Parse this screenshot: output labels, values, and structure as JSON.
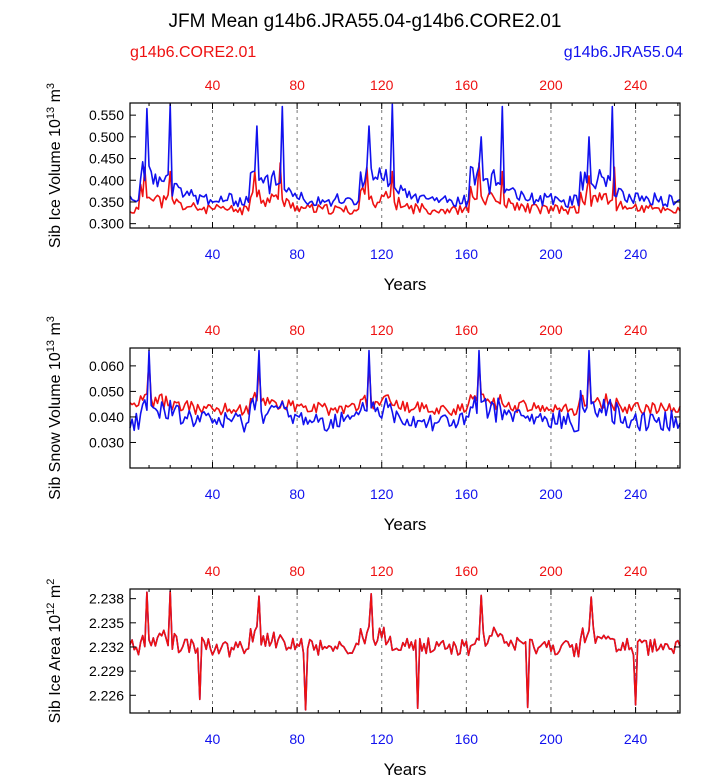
{
  "title": "JFM Mean g14b6.JRA55.04-g14b6.CORE2.01",
  "legend": {
    "left": {
      "label": "g14b6.CORE2.01",
      "color": "#ee1111"
    },
    "right": {
      "label": "g14b6.JRA55.04",
      "color": "#1111ee"
    }
  },
  "colors": {
    "core": "#ee1111",
    "jra": "#1111ee",
    "axis": "#000000"
  },
  "chart_data": [
    {
      "type": "line",
      "ylabel_main": "Sib Ice Volume 10",
      "ylabel_exp": "13",
      "ylabel_unit": " m",
      "ylabel_unit_exp": "3",
      "xlabel": "Years",
      "xlim": [
        1,
        261
      ],
      "ylim": [
        0.29,
        0.578
      ],
      "yticks": [
        0.3,
        0.35,
        0.4,
        0.45,
        0.5,
        0.55
      ],
      "ytick_labels": [
        "0.300",
        "0.350",
        "0.400",
        "0.450",
        "0.500",
        "0.550"
      ],
      "xticks": [
        40,
        80,
        120,
        160,
        200,
        240
      ],
      "xtick_labels": [
        "40",
        "80",
        "120",
        "160",
        "200",
        "240"
      ],
      "cycle": 52,
      "series": [
        {
          "name": "g14b6.CORE2.01",
          "params": {
            "base": 0.33,
            "amp": 0.055,
            "noise": 0.022,
            "min": 0.295,
            "seed": 11,
            "spikes": [
              [
                8,
                0.43
              ],
              [
                20,
                0.42
              ],
              [
                60,
                0.42
              ],
              [
                72,
                0.44
              ],
              [
                113,
                0.43
              ],
              [
                125,
                0.42
              ],
              [
                166,
                0.44
              ],
              [
                177,
                0.42
              ],
              [
                218,
                0.41
              ],
              [
                230,
                0.43
              ]
            ]
          }
        },
        {
          "name": "g14b6.JRA55.04",
          "params": {
            "base": 0.35,
            "amp": 0.1,
            "noise": 0.03,
            "min": 0.3,
            "seed": 23,
            "spikes": [
              [
                9,
                0.565
              ],
              [
                20,
                0.575
              ],
              [
                61,
                0.525
              ],
              [
                73,
                0.57
              ],
              [
                114,
                0.525
              ],
              [
                125,
                0.575
              ],
              [
                167,
                0.5
              ],
              [
                177,
                0.57
              ],
              [
                218,
                0.5
              ],
              [
                229,
                0.57
              ]
            ]
          }
        }
      ]
    },
    {
      "type": "line",
      "ylabel_main": "Sib Snow Volume 10",
      "ylabel_exp": "13",
      "ylabel_unit": " m",
      "ylabel_unit_exp": "3",
      "xlabel": "Years",
      "xlim": [
        1,
        261
      ],
      "ylim": [
        0.02,
        0.067
      ],
      "yticks": [
        0.03,
        0.04,
        0.05,
        0.06
      ],
      "ytick_labels": [
        "0.030",
        "0.040",
        "0.050",
        "0.060"
      ],
      "xticks": [
        40,
        80,
        120,
        160,
        200,
        240
      ],
      "xtick_labels": [
        "40",
        "80",
        "120",
        "160",
        "200",
        "240"
      ],
      "cycle": 52,
      "series": [
        {
          "name": "g14b6.CORE2.01",
          "params": {
            "base": 0.043,
            "amp": 0.006,
            "noise": 0.005,
            "min": 0.028,
            "seed": 37,
            "spikes": [
              [
                10,
                0.062
              ],
              [
                62,
                0.06
              ],
              [
                114,
                0.062
              ],
              [
                166,
                0.061
              ],
              [
                218,
                0.06
              ]
            ]
          }
        },
        {
          "name": "g14b6.JRA55.04",
          "params": {
            "base": 0.038,
            "amp": 0.01,
            "noise": 0.008,
            "min": 0.021,
            "seed": 41,
            "spikes": [
              [
                10,
                0.066
              ],
              [
                62,
                0.066
              ],
              [
                114,
                0.066
              ],
              [
                166,
                0.066
              ],
              [
                218,
                0.066
              ]
            ]
          }
        }
      ]
    },
    {
      "type": "line",
      "ylabel_main": "Sib Ice Area 10",
      "ylabel_exp": "12",
      "ylabel_unit": " m",
      "ylabel_unit_exp": "2",
      "xlabel": "Years",
      "xlim": [
        1,
        261
      ],
      "ylim": [
        2.2238,
        2.2392
      ],
      "yticks": [
        2.226,
        2.229,
        2.232,
        2.235,
        2.238
      ],
      "ytick_labels": [
        "2.226",
        "2.229",
        "2.232",
        "2.235",
        "2.238"
      ],
      "xticks": [
        40,
        80,
        120,
        160,
        200,
        240
      ],
      "xtick_labels": [
        "40",
        "80",
        "120",
        "160",
        "200",
        "240"
      ],
      "cycle": 52,
      "series": [
        {
          "name": "g14b6.CORE2.01",
          "params": {
            "base": 2.2318,
            "amp": 0.0025,
            "noise": 0.0022,
            "min": 2.2245,
            "seed": 53,
            "spikes": [
              [
                9,
                2.2388
              ],
              [
                20,
                2.2389
              ],
              [
                34,
                2.2255
              ],
              [
                62,
                2.2383
              ],
              [
                84,
                2.2242
              ],
              [
                115,
                2.2386
              ],
              [
                137,
                2.2244
              ],
              [
                167,
                2.2384
              ],
              [
                189,
                2.2245
              ],
              [
                219,
                2.2382
              ],
              [
                240,
                2.2248
              ]
            ]
          }
        },
        {
          "name": "g14b6.JRA55.04",
          "params": {
            "base": 2.2318,
            "amp": 0.0025,
            "noise": 0.0022,
            "min": 2.2245,
            "seed": 53,
            "spikes": [
              [
                9,
                2.2388
              ],
              [
                20,
                2.2389
              ],
              [
                34,
                2.2255
              ],
              [
                62,
                2.2383
              ],
              [
                84,
                2.2242
              ],
              [
                115,
                2.2386
              ],
              [
                137,
                2.2244
              ],
              [
                167,
                2.2384
              ],
              [
                189,
                2.2245
              ],
              [
                219,
                2.2382
              ],
              [
                240,
                2.2248
              ]
            ]
          }
        }
      ]
    }
  ]
}
